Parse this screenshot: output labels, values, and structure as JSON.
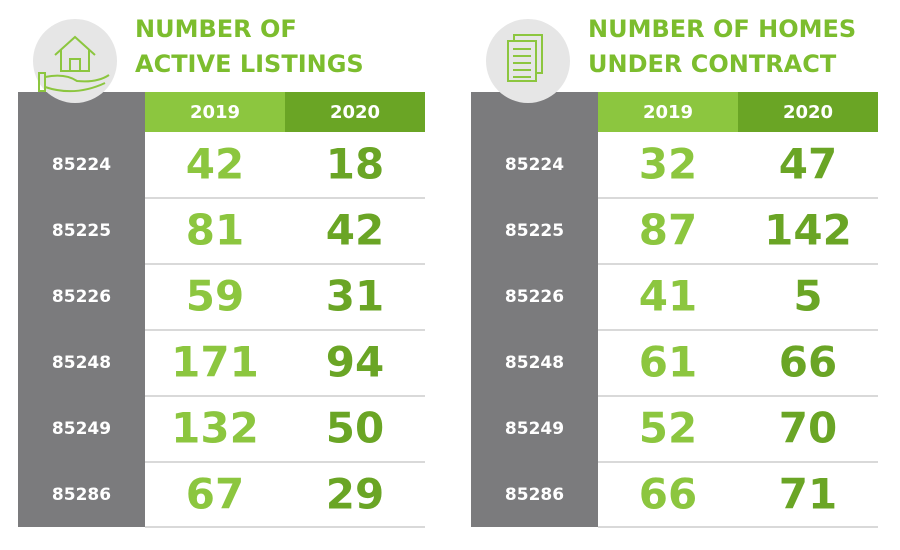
{
  "panels": [
    {
      "title_lines": [
        "NUMBER OF",
        "ACTIVE LISTINGS"
      ],
      "columns": [
        "2019",
        "2020"
      ],
      "rows": [
        {
          "zip": "85224",
          "values": [
            42,
            18
          ]
        },
        {
          "zip": "85225",
          "values": [
            81,
            42
          ]
        },
        {
          "zip": "85226",
          "values": [
            59,
            31
          ]
        },
        {
          "zip": "85248",
          "values": [
            171,
            94
          ]
        },
        {
          "zip": "85249",
          "values": [
            132,
            50
          ]
        },
        {
          "zip": "85286",
          "values": [
            67,
            29
          ]
        }
      ]
    },
    {
      "title_lines": [
        "NUMBER OF HOMES",
        "UNDER CONTRACT"
      ],
      "columns": [
        "2019",
        "2020"
      ],
      "rows": [
        {
          "zip": "85224",
          "values": [
            32,
            47
          ]
        },
        {
          "zip": "85225",
          "values": [
            87,
            142
          ]
        },
        {
          "zip": "85226",
          "values": [
            41,
            5
          ]
        },
        {
          "zip": "85248",
          "values": [
            61,
            66
          ]
        },
        {
          "zip": "85249",
          "values": [
            52,
            70
          ]
        },
        {
          "zip": "85286",
          "values": [
            66,
            71
          ]
        }
      ]
    }
  ]
}
